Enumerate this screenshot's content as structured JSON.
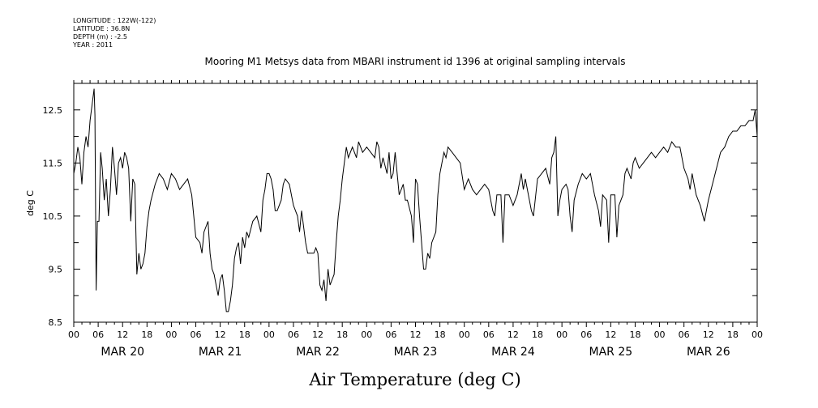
{
  "header": {
    "longitude": "LONGITUDE : 122W(-122)",
    "latitude": "LATITUDE : 36.8N",
    "depth": "DEPTH (m) : -2.5",
    "year": "YEAR : 2011"
  },
  "chart_data": {
    "type": "line",
    "title": "Mooring M1 Metsys data from MBARI instrument id 1396 at original sampling intervals",
    "xlabel": "Air Temperature (deg C)",
    "ylabel": "deg C",
    "ylim": [
      8.5,
      13.0
    ],
    "yticks": [
      "8.5",
      "9.5",
      "10.5",
      "11.5",
      "12.5"
    ],
    "xlim_hours": [
      0,
      168
    ],
    "hour_tick_labels": [
      "00",
      "06",
      "12",
      "18",
      "00",
      "06",
      "12",
      "18",
      "00",
      "06",
      "12",
      "18",
      "00",
      "06",
      "12",
      "18",
      "00",
      "06",
      "12",
      "18",
      "00",
      "06",
      "12",
      "18",
      "00",
      "06",
      "12",
      "18",
      "00"
    ],
    "day_labels": [
      "MAR 20",
      "MAR 21",
      "MAR 22",
      "MAR 23",
      "MAR 24",
      "MAR 25",
      "MAR 26"
    ],
    "grid": false,
    "series": [
      {
        "values": [
          [
            0,
            11.3
          ],
          [
            0.5,
            11.5
          ],
          [
            1,
            11.8
          ],
          [
            1.5,
            11.6
          ],
          [
            2,
            11.1
          ],
          [
            2.5,
            11.7
          ],
          [
            3,
            12.0
          ],
          [
            3.5,
            11.8
          ],
          [
            4,
            12.3
          ],
          [
            4.5,
            12.6
          ],
          [
            5,
            12.9
          ],
          [
            5.2,
            12.4
          ],
          [
            5.5,
            9.1
          ],
          [
            5.8,
            10.4
          ],
          [
            6.2,
            10.4
          ],
          [
            6.6,
            11.7
          ],
          [
            7,
            11.4
          ],
          [
            7.5,
            10.8
          ],
          [
            8,
            11.2
          ],
          [
            8.5,
            10.5
          ],
          [
            9,
            11.0
          ],
          [
            9.5,
            11.8
          ],
          [
            10,
            11.4
          ],
          [
            10.5,
            10.9
          ],
          [
            11,
            11.5
          ],
          [
            11.5,
            11.6
          ],
          [
            12,
            11.4
          ],
          [
            12.5,
            11.7
          ],
          [
            13,
            11.6
          ],
          [
            13.5,
            11.4
          ],
          [
            14,
            10.4
          ],
          [
            14.5,
            11.2
          ],
          [
            15,
            11.1
          ],
          [
            15.5,
            9.4
          ],
          [
            16,
            9.8
          ],
          [
            16.5,
            9.5
          ],
          [
            17,
            9.6
          ],
          [
            17.5,
            9.8
          ],
          [
            18,
            10.3
          ],
          [
            18.5,
            10.6
          ],
          [
            19,
            10.8
          ],
          [
            20,
            11.1
          ],
          [
            21,
            11.3
          ],
          [
            22,
            11.2
          ],
          [
            23,
            11.0
          ],
          [
            24,
            11.3
          ],
          [
            25,
            11.2
          ],
          [
            26,
            11.0
          ],
          [
            27,
            11.1
          ],
          [
            28,
            11.2
          ],
          [
            29,
            10.9
          ],
          [
            30,
            10.1
          ],
          [
            31,
            10.0
          ],
          [
            31.5,
            9.8
          ],
          [
            32,
            10.2
          ],
          [
            33,
            10.4
          ],
          [
            33.5,
            9.8
          ],
          [
            34,
            9.5
          ],
          [
            34.5,
            9.4
          ],
          [
            35,
            9.2
          ],
          [
            35.5,
            9.0
          ],
          [
            36,
            9.3
          ],
          [
            36.5,
            9.4
          ],
          [
            37,
            9.1
          ],
          [
            37.5,
            8.7
          ],
          [
            38,
            8.7
          ],
          [
            38.5,
            8.9
          ],
          [
            39,
            9.2
          ],
          [
            39.5,
            9.7
          ],
          [
            40,
            9.9
          ],
          [
            40.5,
            10.0
          ],
          [
            41,
            9.6
          ],
          [
            41.5,
            10.1
          ],
          [
            42,
            9.9
          ],
          [
            42.5,
            10.2
          ],
          [
            43,
            10.1
          ],
          [
            44,
            10.4
          ],
          [
            45,
            10.5
          ],
          [
            46,
            10.2
          ],
          [
            46.5,
            10.8
          ],
          [
            47,
            11.0
          ],
          [
            47.5,
            11.3
          ],
          [
            48,
            11.3
          ],
          [
            48.5,
            11.2
          ],
          [
            49,
            11.0
          ],
          [
            49.5,
            10.6
          ],
          [
            50,
            10.6
          ],
          [
            51,
            10.8
          ],
          [
            51.5,
            11.1
          ],
          [
            52,
            11.2
          ],
          [
            53,
            11.1
          ],
          [
            54,
            10.7
          ],
          [
            55,
            10.5
          ],
          [
            55.5,
            10.2
          ],
          [
            56,
            10.6
          ],
          [
            57,
            10.0
          ],
          [
            57.5,
            9.8
          ],
          [
            58,
            9.8
          ],
          [
            59,
            9.8
          ],
          [
            59.5,
            9.9
          ],
          [
            60,
            9.8
          ],
          [
            60.5,
            9.2
          ],
          [
            61,
            9.1
          ],
          [
            61.5,
            9.3
          ],
          [
            62,
            8.9
          ],
          [
            62.5,
            9.5
          ],
          [
            63,
            9.2
          ],
          [
            64,
            9.4
          ],
          [
            64.5,
            10.0
          ],
          [
            65,
            10.5
          ],
          [
            65.5,
            10.8
          ],
          [
            66,
            11.2
          ],
          [
            66.5,
            11.5
          ],
          [
            67,
            11.8
          ],
          [
            67.5,
            11.6
          ],
          [
            68,
            11.7
          ],
          [
            68.5,
            11.8
          ],
          [
            69,
            11.7
          ],
          [
            69.5,
            11.6
          ],
          [
            70,
            11.9
          ],
          [
            71,
            11.7
          ],
          [
            72,
            11.8
          ],
          [
            73,
            11.7
          ],
          [
            74,
            11.6
          ],
          [
            74.5,
            11.9
          ],
          [
            75,
            11.8
          ],
          [
            75.5,
            11.4
          ],
          [
            76,
            11.6
          ],
          [
            77,
            11.3
          ],
          [
            77.5,
            11.7
          ],
          [
            78,
            11.2
          ],
          [
            78.5,
            11.3
          ],
          [
            79,
            11.7
          ],
          [
            80,
            10.9
          ],
          [
            81,
            11.1
          ],
          [
            81.5,
            10.8
          ],
          [
            82,
            10.8
          ],
          [
            83,
            10.5
          ],
          [
            83.5,
            10.0
          ],
          [
            84,
            11.2
          ],
          [
            84.5,
            11.1
          ],
          [
            85,
            10.5
          ],
          [
            85.5,
            10.0
          ],
          [
            86,
            9.5
          ],
          [
            86.5,
            9.5
          ],
          [
            87,
            9.8
          ],
          [
            87.5,
            9.7
          ],
          [
            88,
            10.0
          ],
          [
            89,
            10.2
          ],
          [
            89.5,
            10.9
          ],
          [
            90,
            11.3
          ],
          [
            90.5,
            11.5
          ],
          [
            91,
            11.7
          ],
          [
            91.5,
            11.6
          ],
          [
            92,
            11.8
          ],
          [
            93,
            11.7
          ],
          [
            94,
            11.6
          ],
          [
            95,
            11.5
          ],
          [
            96,
            11.0
          ],
          [
            97,
            11.2
          ],
          [
            98,
            11.0
          ],
          [
            99,
            10.9
          ],
          [
            100,
            11.0
          ],
          [
            101,
            11.1
          ],
          [
            102,
            11.0
          ],
          [
            103,
            10.6
          ],
          [
            103.5,
            10.5
          ],
          [
            104,
            10.9
          ],
          [
            105,
            10.9
          ],
          [
            105.5,
            10.0
          ],
          [
            106,
            10.9
          ],
          [
            107,
            10.9
          ],
          [
            108,
            10.7
          ],
          [
            109,
            10.9
          ],
          [
            110,
            11.3
          ],
          [
            110.5,
            11.0
          ],
          [
            111,
            11.2
          ],
          [
            112,
            10.8
          ],
          [
            112.5,
            10.6
          ],
          [
            113,
            10.5
          ],
          [
            114,
            11.2
          ],
          [
            115,
            11.3
          ],
          [
            116,
            11.4
          ],
          [
            117,
            11.1
          ],
          [
            117.5,
            11.6
          ],
          [
            118,
            11.7
          ],
          [
            118.5,
            12.0
          ],
          [
            119,
            10.5
          ],
          [
            119.5,
            10.8
          ],
          [
            120,
            11.0
          ],
          [
            121,
            11.1
          ],
          [
            121.5,
            11.0
          ],
          [
            122,
            10.5
          ],
          [
            122.5,
            10.2
          ],
          [
            123,
            10.8
          ],
          [
            124,
            11.1
          ],
          [
            125,
            11.3
          ],
          [
            126,
            11.2
          ],
          [
            127,
            11.3
          ],
          [
            128,
            10.9
          ],
          [
            129,
            10.6
          ],
          [
            129.5,
            10.3
          ],
          [
            130,
            10.9
          ],
          [
            131,
            10.8
          ],
          [
            131.5,
            10.0
          ],
          [
            132,
            10.9
          ],
          [
            133,
            10.9
          ],
          [
            133.5,
            10.1
          ],
          [
            134,
            10.7
          ],
          [
            135,
            10.9
          ],
          [
            135.5,
            11.3
          ],
          [
            136,
            11.4
          ],
          [
            137,
            11.2
          ],
          [
            137.5,
            11.5
          ],
          [
            138,
            11.6
          ],
          [
            139,
            11.4
          ],
          [
            140,
            11.5
          ],
          [
            141,
            11.6
          ],
          [
            142,
            11.7
          ],
          [
            143,
            11.6
          ],
          [
            144,
            11.7
          ],
          [
            145,
            11.8
          ],
          [
            146,
            11.7
          ],
          [
            147,
            11.9
          ],
          [
            148,
            11.8
          ],
          [
            149,
            11.8
          ],
          [
            149.5,
            11.6
          ],
          [
            150,
            11.4
          ],
          [
            151,
            11.2
          ],
          [
            151.5,
            11.0
          ],
          [
            152,
            11.3
          ],
          [
            153,
            10.9
          ],
          [
            154,
            10.7
          ],
          [
            155,
            10.4
          ],
          [
            155.5,
            10.6
          ],
          [
            156,
            10.8
          ],
          [
            157,
            11.1
          ],
          [
            158,
            11.4
          ],
          [
            159,
            11.7
          ],
          [
            160,
            11.8
          ],
          [
            161,
            12.0
          ],
          [
            162,
            12.1
          ],
          [
            163,
            12.1
          ],
          [
            164,
            12.2
          ],
          [
            165,
            12.2
          ],
          [
            166,
            12.3
          ],
          [
            167,
            12.3
          ],
          [
            167.5,
            12.5
          ],
          [
            168,
            12.0
          ]
        ]
      }
    ]
  }
}
